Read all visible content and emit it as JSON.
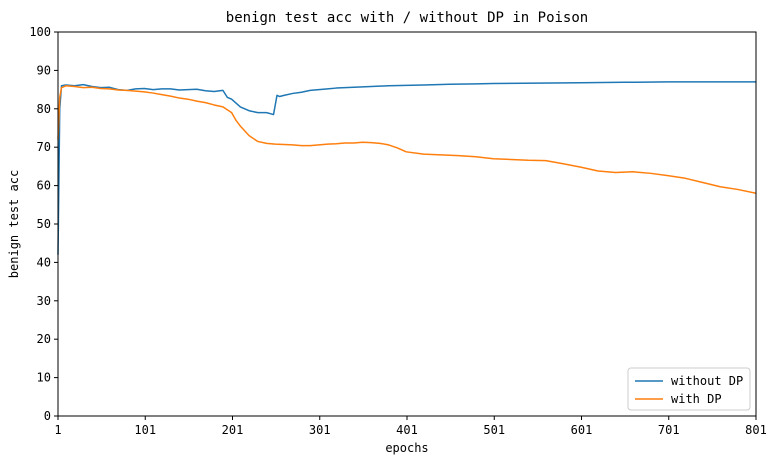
{
  "chart_data": {
    "type": "line",
    "title": "benign test acc with / without DP in Poison",
    "xlabel": "epochs",
    "ylabel": "benign test acc",
    "xlim": [
      1,
      801
    ],
    "ylim": [
      0,
      100
    ],
    "xticks": [
      1,
      101,
      201,
      301,
      401,
      501,
      601,
      701,
      801
    ],
    "yticks": [
      0,
      10,
      20,
      30,
      40,
      50,
      60,
      70,
      80,
      90,
      100
    ],
    "grid": false,
    "legend_position": "lower-right",
    "series": [
      {
        "name": "without DP",
        "color": "#1f77b4",
        "x": [
          1,
          3,
          5,
          10,
          20,
          30,
          40,
          50,
          60,
          70,
          80,
          90,
          100,
          110,
          120,
          130,
          140,
          150,
          160,
          170,
          180,
          190,
          195,
          200,
          205,
          210,
          220,
          230,
          240,
          248,
          250,
          252,
          255,
          260,
          270,
          280,
          290,
          300,
          310,
          320,
          340,
          360,
          380,
          400,
          420,
          450,
          480,
          500,
          550,
          600,
          650,
          700,
          750,
          801
        ],
        "y": [
          42,
          80,
          86,
          86.2,
          86,
          86.3,
          85.8,
          85.5,
          85.6,
          85,
          84.8,
          85.2,
          85.3,
          85,
          85.2,
          85.2,
          84.9,
          85,
          85.1,
          84.7,
          84.5,
          84.8,
          83,
          82.5,
          81.5,
          80.5,
          79.5,
          79,
          79,
          78.5,
          81,
          83.5,
          83.2,
          83.5,
          84,
          84.3,
          84.8,
          85,
          85.2,
          85.4,
          85.6,
          85.8,
          86,
          86.1,
          86.2,
          86.4,
          86.5,
          86.6,
          86.7,
          86.8,
          86.9,
          87,
          87,
          87
        ]
      },
      {
        "name": "with DP",
        "color": "#ff7f0e",
        "x": [
          1,
          3,
          5,
          10,
          20,
          30,
          40,
          50,
          60,
          70,
          80,
          90,
          100,
          110,
          120,
          130,
          140,
          150,
          160,
          170,
          180,
          190,
          200,
          205,
          210,
          220,
          230,
          240,
          250,
          260,
          270,
          280,
          290,
          300,
          310,
          320,
          330,
          340,
          350,
          360,
          370,
          380,
          390,
          400,
          420,
          440,
          460,
          480,
          500,
          520,
          540,
          560,
          580,
          600,
          620,
          640,
          660,
          680,
          700,
          720,
          740,
          760,
          780,
          801
        ],
        "y": [
          72,
          83,
          85.5,
          86,
          85.8,
          85.5,
          85.6,
          85.3,
          85.2,
          84.9,
          84.8,
          84.6,
          84.4,
          84.1,
          83.7,
          83.3,
          82.8,
          82.5,
          82,
          81.6,
          81,
          80.5,
          79,
          77,
          75.5,
          73,
          71.5,
          71,
          70.8,
          70.7,
          70.6,
          70.4,
          70.4,
          70.6,
          70.8,
          70.9,
          71.1,
          71.1,
          71.3,
          71.2,
          71,
          70.6,
          69.8,
          68.8,
          68.2,
          68,
          67.8,
          67.5,
          67,
          66.8,
          66.6,
          66.5,
          65.7,
          64.8,
          63.8,
          63.4,
          63.6,
          63.2,
          62.6,
          61.9,
          60.8,
          59.7,
          59,
          58
        ]
      }
    ]
  }
}
